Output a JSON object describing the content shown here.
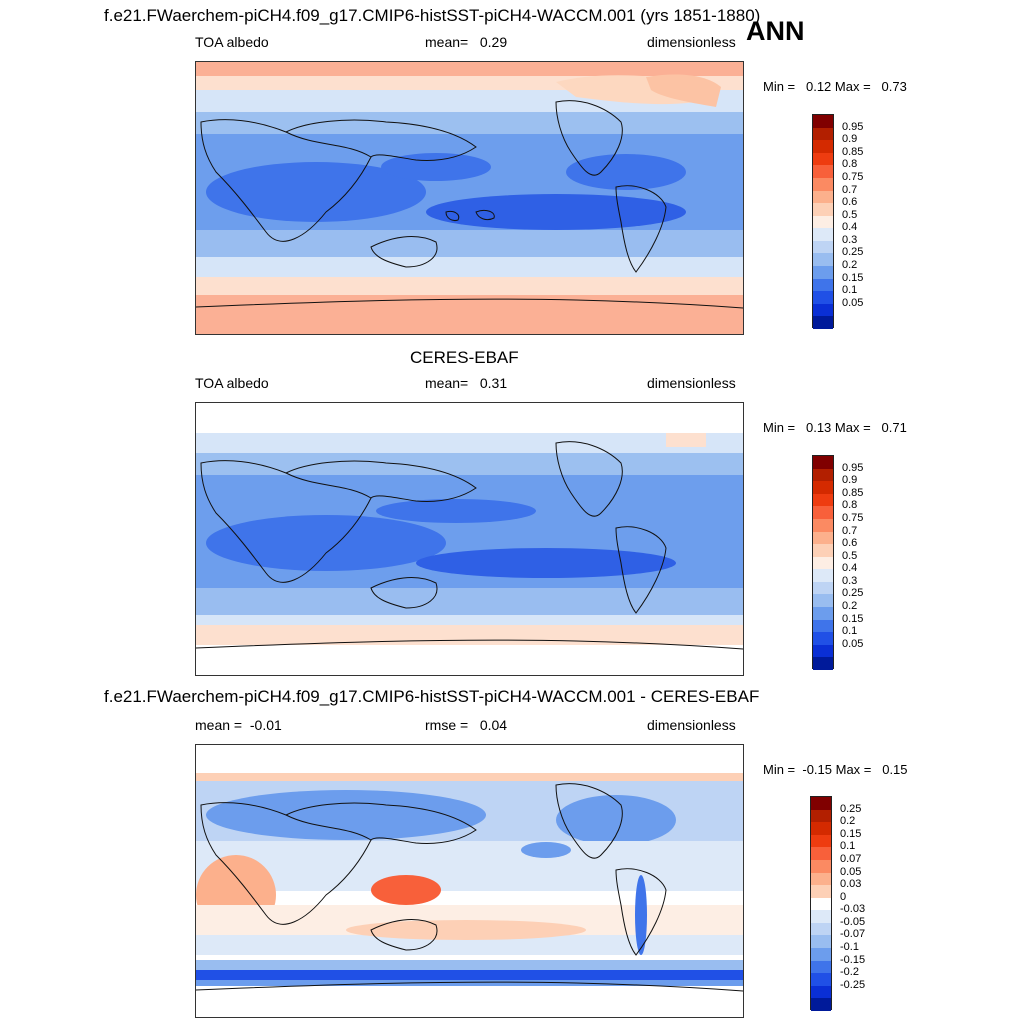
{
  "header": {
    "ann_label": "ANN"
  },
  "panel_top": {
    "title": "f.e21.FWaerchem-piCH4.f09_g17.CMIP6-histSST-piCH4-WACCM.001 (yrs 1851-1880)",
    "left": "TOA albedo",
    "center": "mean=   0.29",
    "right": "dimensionless",
    "minmax": "Min =   0.12 Max =   0.73",
    "colorbar": {
      "labels": [
        "0.95",
        "0.9",
        "0.85",
        "0.8",
        "0.75",
        "0.7",
        "0.6",
        "0.5",
        "0.4",
        "0.3",
        "0.25",
        "0.2",
        "0.15",
        "0.1",
        "0.05"
      ],
      "colors": [
        "#800000",
        "#b21f00",
        "#d42a00",
        "#ee3c10",
        "#f8603a",
        "#fb8a62",
        "#fcb08c",
        "#fdd0b6",
        "#fdeee4",
        "#dde9f8",
        "#bed4f4",
        "#99bdf0",
        "#6c9ded",
        "#3f74ea",
        "#2050e6",
        "#0a2fd5",
        "#001a9a"
      ]
    }
  },
  "panel_mid": {
    "title": "CERES-EBAF",
    "left": "TOA albedo",
    "center": "mean=   0.31",
    "right": "dimensionless",
    "minmax": "Min =   0.13 Max =   0.71",
    "colorbar": {
      "labels": [
        "0.95",
        "0.9",
        "0.85",
        "0.8",
        "0.75",
        "0.7",
        "0.6",
        "0.5",
        "0.4",
        "0.3",
        "0.25",
        "0.2",
        "0.15",
        "0.1",
        "0.05"
      ],
      "colors": [
        "#800000",
        "#b21f00",
        "#d42a00",
        "#ee3c10",
        "#f8603a",
        "#fb8a62",
        "#fcb08c",
        "#fdd0b6",
        "#fdeee4",
        "#dde9f8",
        "#bed4f4",
        "#99bdf0",
        "#6c9ded",
        "#3f74ea",
        "#2050e6",
        "#0a2fd5",
        "#001a9a"
      ]
    }
  },
  "panel_bot": {
    "title": "f.e21.FWaerchem-piCH4.f09_g17.CMIP6-histSST-piCH4-WACCM.001 - CERES-EBAF",
    "left": "mean =  -0.01",
    "center": "rmse =   0.04",
    "right": "dimensionless",
    "minmax": "Min =  -0.15 Max =   0.15",
    "colorbar": {
      "labels": [
        "0.25",
        "0.2",
        "0.15",
        "0.1",
        "0.07",
        "0.05",
        "0.03",
        "0",
        "-0.03",
        "-0.05",
        "-0.07",
        "-0.1",
        "-0.15",
        "-0.2",
        "-0.25"
      ],
      "colors": [
        "#800000",
        "#b21f00",
        "#d42a00",
        "#ee3c10",
        "#f8603a",
        "#fb8a62",
        "#fcb08c",
        "#fdd0b6",
        "#ffffff",
        "#dde9f8",
        "#bed4f4",
        "#99bdf0",
        "#6c9ded",
        "#3f74ea",
        "#2050e6",
        "#0a2fd5",
        "#001a9a"
      ]
    }
  }
}
